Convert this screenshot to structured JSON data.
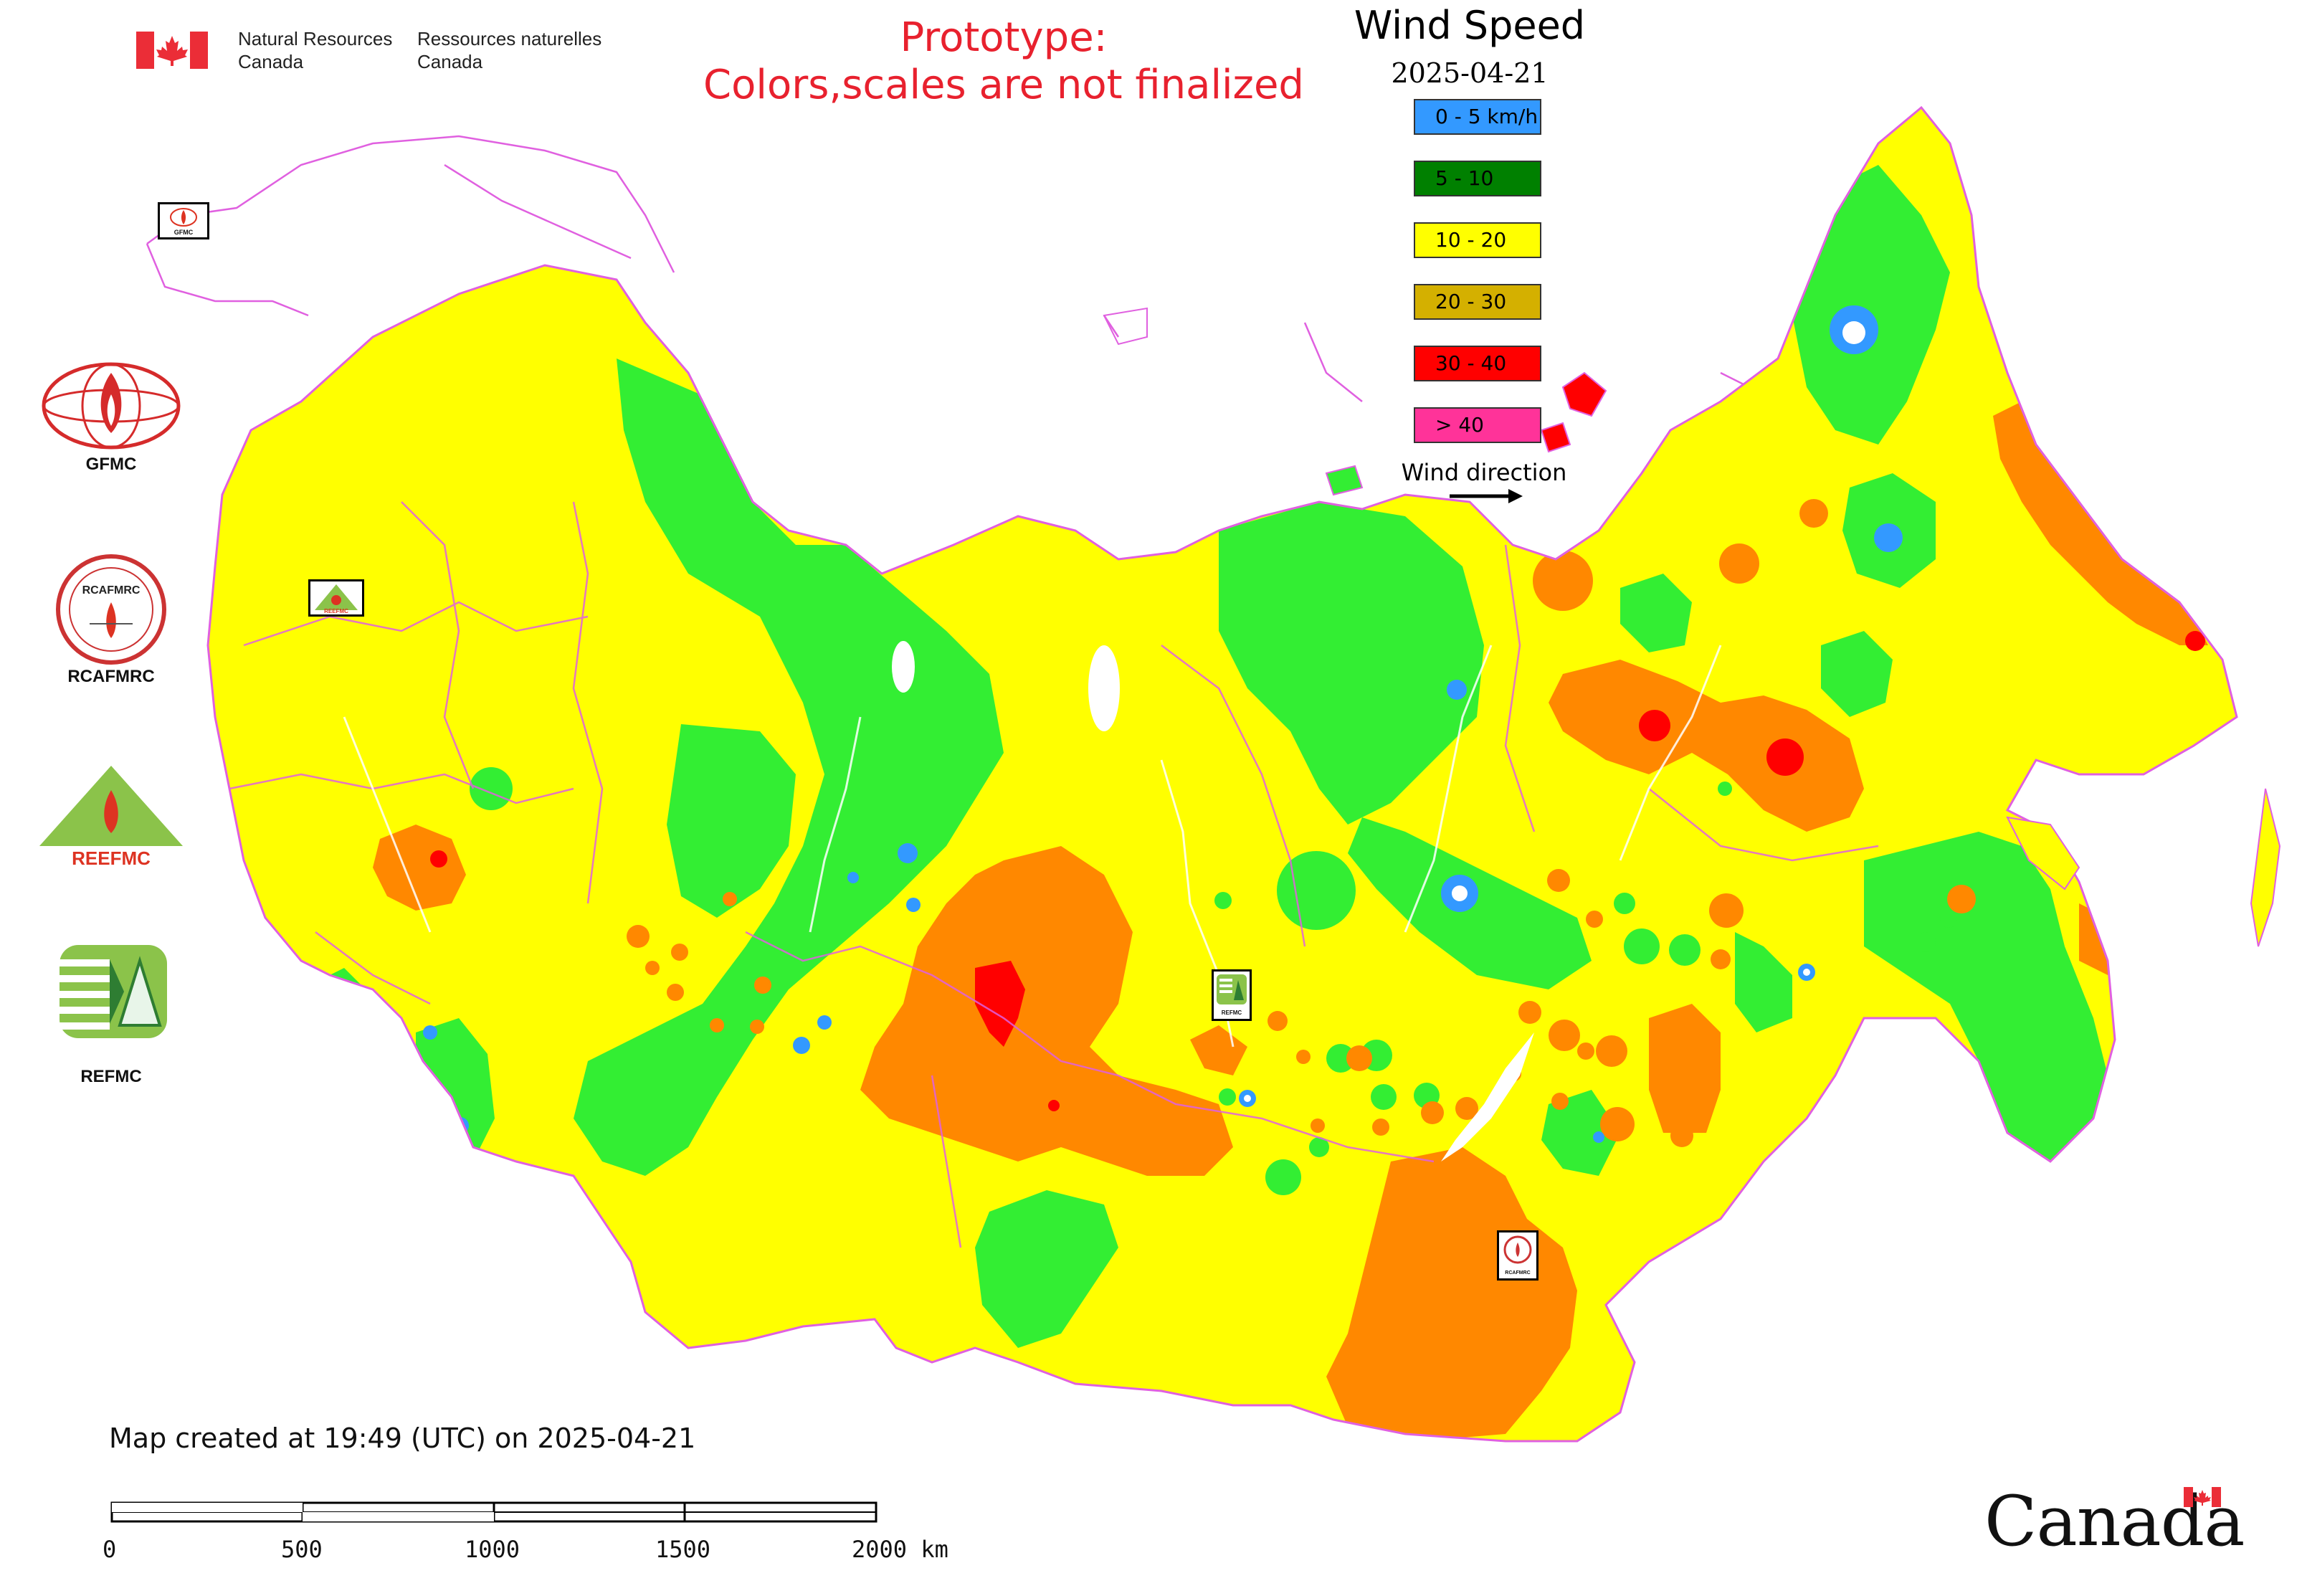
{
  "header": {
    "nrcan_en_line1": "Natural Resources",
    "nrcan_en_line2": "Canada",
    "nrcan_fr_line1": "Ressources naturelles",
    "nrcan_fr_line2": "Canada",
    "prototype_line1": "Prototype:",
    "prototype_line2": "Colors,scales are not finalized"
  },
  "legend": {
    "title": "Wind Speed",
    "date": "2025-04-21",
    "classes": [
      {
        "label": "0 - 5 km/h",
        "color": "#3399ff"
      },
      {
        "label": "5 - 10",
        "color": "#008000"
      },
      {
        "label": "10 - 20",
        "color": "#ffff00"
      },
      {
        "label": "20 - 30",
        "color": "#d4b000"
      },
      {
        "label": "30 - 40",
        "color": "#ff0000"
      },
      {
        "label": "> 40",
        "color": "#ff3399"
      }
    ],
    "direction_label": "Wind direction"
  },
  "map_colors": {
    "yellow": "#ffff00",
    "green": "#33ee33",
    "orange": "#ff8800",
    "red": "#ff0000",
    "blue": "#3399ff",
    "border": "#e060e0"
  },
  "organizations": [
    {
      "label": "GFMC",
      "map_badge": "GFMC"
    },
    {
      "label": "RCAFMRC",
      "map_badge": "RCAFMRC"
    },
    {
      "label": "REEFMC",
      "map_badge": "REEFMC"
    },
    {
      "label": "REFMC",
      "map_badge": "REFMC"
    }
  ],
  "logo_text": {
    "rcafmrc_inner": "RCAFMRC",
    "reefmc_inner": "REEFMC"
  },
  "footer": {
    "created": "Map created at 19:49 (UTC) on 2025-04-21",
    "scale_labels": [
      "0",
      "500",
      "1000",
      "1500",
      "2000 km"
    ],
    "wordmark": "Canada"
  }
}
